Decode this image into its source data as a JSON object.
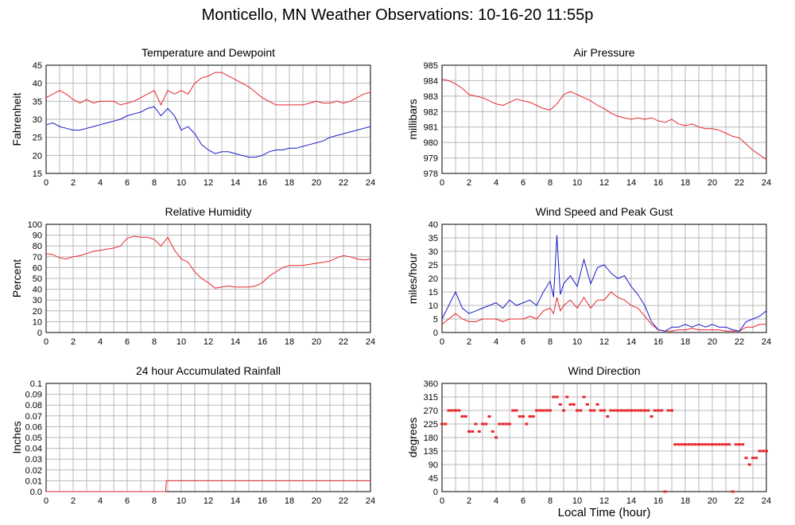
{
  "title": "Monticello, MN Weather Observations: 10-16-20 11:55p",
  "xlabel": "Local Time (hour)",
  "colors": {
    "red": "#e8262b",
    "blue": "#1a1acc",
    "grid": "#b8b8b8",
    "frame": "#000000"
  },
  "chart_data": [
    {
      "type": "line",
      "title": "Temperature and Dewpoint",
      "ylabel": "Fahrenheit",
      "xlim": [
        0,
        24
      ],
      "ylim": [
        15,
        45
      ],
      "xticks": [
        "0",
        "2",
        "4",
        "6",
        "8",
        "10",
        "12",
        "14",
        "16",
        "18",
        "20",
        "22",
        "24"
      ],
      "yticks": [
        "15",
        "20",
        "25",
        "30",
        "35",
        "40",
        "45"
      ],
      "x": [
        0,
        0.5,
        1,
        1.5,
        2,
        2.5,
        3,
        3.5,
        4,
        4.5,
        5,
        5.5,
        6,
        6.5,
        7,
        7.5,
        8,
        8.5,
        9,
        9.5,
        10,
        10.5,
        11,
        11.5,
        12,
        12.5,
        13,
        13.5,
        14,
        14.5,
        15,
        15.5,
        16,
        16.5,
        17,
        17.5,
        18,
        18.5,
        19,
        19.5,
        20,
        20.5,
        21,
        21.5,
        22,
        22.5,
        23,
        23.5,
        24
      ],
      "series": [
        {
          "color": "red",
          "values": [
            36,
            37,
            38,
            37,
            35.5,
            34.5,
            35.5,
            34.5,
            35,
            35,
            35,
            34,
            34.5,
            35,
            36,
            37,
            38,
            34,
            38,
            37,
            38,
            37,
            40,
            41.5,
            42,
            43,
            43,
            42,
            41,
            40,
            39,
            37.5,
            36,
            35,
            34,
            34,
            34,
            34,
            34,
            34.5,
            35,
            34.5,
            34.5,
            35,
            34.5,
            35,
            36,
            37,
            37.5
          ]
        },
        {
          "color": "blue",
          "values": [
            28.5,
            29,
            28,
            27.5,
            27,
            27,
            27.5,
            28,
            28.5,
            29,
            29.5,
            30,
            31,
            31.5,
            32,
            33,
            33.5,
            31,
            33,
            31,
            27,
            28,
            26,
            23,
            21.5,
            20.5,
            21,
            21,
            20.5,
            20,
            19.5,
            19.5,
            20,
            21,
            21.5,
            21.5,
            22,
            22,
            22.5,
            23,
            23.5,
            24,
            25,
            25.5,
            26,
            26.5,
            27,
            27.5,
            28
          ]
        }
      ]
    },
    {
      "type": "line",
      "title": "Air Pressure",
      "ylabel": "millibars",
      "xlim": [
        0,
        24
      ],
      "ylim": [
        978,
        985
      ],
      "xticks": [
        "0",
        "2",
        "4",
        "6",
        "8",
        "10",
        "12",
        "14",
        "16",
        "18",
        "20",
        "22",
        "24"
      ],
      "yticks": [
        "978",
        "979",
        "980",
        "981",
        "982",
        "983",
        "984",
        "985"
      ],
      "x": [
        0,
        0.5,
        1,
        1.5,
        2,
        2.5,
        3,
        3.5,
        4,
        4.5,
        5,
        5.5,
        6,
        6.5,
        7,
        7.5,
        8,
        8.5,
        9,
        9.5,
        10,
        10.5,
        11,
        11.5,
        12,
        12.5,
        13,
        13.5,
        14,
        14.5,
        15,
        15.5,
        16,
        16.5,
        17,
        17.5,
        18,
        18.5,
        19,
        19.5,
        20,
        20.5,
        21,
        21.5,
        22,
        22.5,
        23,
        23.5,
        24
      ],
      "series": [
        {
          "color": "red",
          "values": [
            984.1,
            984,
            983.8,
            983.5,
            983.1,
            983,
            982.9,
            982.7,
            982.5,
            982.4,
            982.6,
            982.8,
            982.7,
            982.6,
            982.4,
            982.2,
            982.1,
            982.5,
            983.1,
            983.3,
            983.1,
            982.9,
            982.7,
            982.4,
            982.2,
            981.9,
            981.7,
            981.6,
            981.5,
            981.6,
            981.5,
            981.6,
            981.4,
            981.3,
            981.5,
            981.2,
            981.1,
            981.2,
            981,
            980.9,
            980.9,
            980.8,
            980.6,
            980.4,
            980.3,
            979.9,
            979.5,
            979.2,
            978.9
          ]
        }
      ]
    },
    {
      "type": "line",
      "title": "Relative Humidity",
      "ylabel": "Percent",
      "xlim": [
        0,
        24
      ],
      "ylim": [
        0,
        100
      ],
      "xticks": [
        "0",
        "2",
        "4",
        "6",
        "8",
        "10",
        "12",
        "14",
        "16",
        "18",
        "20",
        "22",
        "24"
      ],
      "yticks": [
        "0",
        "10",
        "20",
        "30",
        "40",
        "50",
        "60",
        "70",
        "80",
        "90",
        "100"
      ],
      "x": [
        0,
        0.5,
        1,
        1.5,
        2,
        2.5,
        3,
        3.5,
        4,
        4.5,
        5,
        5.5,
        6,
        6.5,
        7,
        7.5,
        8,
        8.5,
        9,
        9.5,
        10,
        10.5,
        11,
        11.5,
        12,
        12.5,
        13,
        13.5,
        14,
        14.5,
        15,
        15.5,
        16,
        16.5,
        17,
        17.5,
        18,
        18.5,
        19,
        19.5,
        20,
        20.5,
        21,
        21.5,
        22,
        22.5,
        23,
        23.5,
        24
      ],
      "series": [
        {
          "color": "red",
          "values": [
            73,
            72,
            69,
            68,
            70,
            71,
            73,
            75,
            76,
            77,
            78,
            80,
            87,
            89,
            88,
            88,
            86,
            80,
            88,
            76,
            68,
            65,
            56,
            50,
            46,
            41,
            42,
            43,
            42,
            42,
            42,
            43,
            46,
            52,
            56,
            60,
            62,
            62,
            62,
            63,
            64,
            65,
            66,
            69,
            71,
            70,
            68,
            67,
            68
          ]
        }
      ]
    },
    {
      "type": "line",
      "title": "Wind Speed and Peak Gust",
      "ylabel": "miles/hour",
      "xlim": [
        0,
        24
      ],
      "ylim": [
        0,
        40
      ],
      "xticks": [
        "0",
        "2",
        "4",
        "6",
        "8",
        "10",
        "12",
        "14",
        "16",
        "18",
        "20",
        "22",
        "24"
      ],
      "yticks": [
        "0",
        "5",
        "10",
        "15",
        "20",
        "25",
        "30",
        "35",
        "40"
      ],
      "x": [
        0,
        0.5,
        1,
        1.5,
        2,
        2.5,
        3,
        3.5,
        4,
        4.5,
        5,
        5.5,
        6,
        6.5,
        7,
        7.5,
        8,
        8.25,
        8.5,
        8.75,
        9,
        9.5,
        10,
        10.5,
        11,
        11.5,
        12,
        12.5,
        13,
        13.5,
        14,
        14.5,
        15,
        15.5,
        16,
        16.5,
        17,
        17.5,
        18,
        18.5,
        19,
        19.5,
        20,
        20.5,
        21,
        21.5,
        22,
        22.5,
        23,
        23.5,
        24
      ],
      "series": [
        {
          "color": "red",
          "values": [
            3,
            5,
            7,
            5,
            4,
            4,
            5,
            5,
            5,
            4,
            5,
            5,
            5,
            6,
            5,
            8,
            9,
            7,
            13,
            8,
            10,
            12,
            9,
            13,
            9,
            12,
            12,
            15,
            13,
            12,
            10,
            9,
            6,
            3,
            1,
            0.5,
            0.5,
            1,
            1,
            1.5,
            1,
            1,
            1,
            1,
            0.5,
            0.5,
            0.5,
            2,
            2,
            3,
            3
          ]
        },
        {
          "color": "blue",
          "values": [
            5,
            10,
            15,
            9,
            7,
            8,
            9,
            10,
            11,
            9,
            12,
            10,
            11,
            12,
            10,
            15,
            19,
            13,
            36,
            14,
            18,
            21,
            17,
            27,
            18,
            24,
            25,
            22,
            20,
            21,
            17,
            14,
            10,
            4,
            1,
            0.5,
            2,
            2,
            3,
            2,
            3,
            2,
            3,
            2,
            2,
            1,
            0.5,
            4,
            5,
            6,
            8
          ]
        }
      ]
    },
    {
      "type": "line",
      "title": "24 hour Accumulated Rainfall",
      "ylabel": "Inches",
      "xlim": [
        0,
        24
      ],
      "ylim": [
        0,
        0.1
      ],
      "xticks": [
        "0",
        "2",
        "4",
        "6",
        "8",
        "10",
        "12",
        "14",
        "16",
        "18",
        "20",
        "22",
        "24"
      ],
      "yticks": [
        "0.0",
        "0.01",
        "0.02",
        "0.03",
        "0.04",
        "0.05",
        "0.06",
        "0.07",
        "0.08",
        "0.09",
        "0.1"
      ],
      "x": [
        0,
        8.85,
        8.9,
        24
      ],
      "series": [
        {
          "color": "red",
          "values": [
            0,
            0,
            0.01,
            0.01
          ]
        }
      ]
    },
    {
      "type": "scatter",
      "title": "Wind Direction",
      "ylabel": "degrees",
      "xlim": [
        0,
        24
      ],
      "ylim": [
        0,
        360
      ],
      "xticks": [
        "0",
        "2",
        "4",
        "6",
        "8",
        "10",
        "12",
        "14",
        "16",
        "18",
        "20",
        "22",
        "24"
      ],
      "yticks": [
        "0",
        "45",
        "90",
        "135",
        "180",
        "225",
        "270",
        "315",
        "360"
      ],
      "x": [
        0,
        0.25,
        0.5,
        0.75,
        1,
        1.25,
        1.5,
        1.75,
        2,
        2.25,
        2.5,
        2.75,
        3,
        3.25,
        3.5,
        3.75,
        4,
        4.25,
        4.5,
        4.75,
        5,
        5.25,
        5.5,
        5.75,
        6,
        6.25,
        6.5,
        6.75,
        7,
        7.25,
        7.5,
        7.75,
        8,
        8.25,
        8.5,
        8.75,
        9,
        9.25,
        9.5,
        9.75,
        10,
        10.25,
        10.5,
        10.75,
        11,
        11.25,
        11.5,
        11.75,
        12,
        12.25,
        12.5,
        12.75,
        13,
        13.25,
        13.5,
        13.75,
        14,
        14.25,
        14.5,
        14.75,
        15,
        15.25,
        15.5,
        15.75,
        16,
        16.25,
        16.5,
        16.75,
        17,
        17.25,
        17.5,
        17.75,
        18,
        18.25,
        18.5,
        18.75,
        19,
        19.25,
        19.5,
        19.75,
        20,
        20.25,
        20.5,
        20.75,
        21,
        21.25,
        21.5,
        21.75,
        22,
        22.25,
        22.5,
        22.75,
        23,
        23.25,
        23.5,
        23.75,
        24
      ],
      "series": [
        {
          "color": "red",
          "values": [
            225,
            225,
            270,
            270,
            270,
            270,
            250,
            250,
            200,
            200,
            225,
            200,
            225,
            225,
            250,
            200,
            180,
            225,
            225,
            225,
            225,
            270,
            270,
            250,
            250,
            225,
            250,
            250,
            270,
            270,
            270,
            270,
            270,
            315,
            315,
            290,
            270,
            315,
            290,
            290,
            270,
            270,
            315,
            290,
            270,
            270,
            290,
            270,
            270,
            250,
            270,
            270,
            270,
            270,
            270,
            270,
            270,
            270,
            270,
            270,
            270,
            270,
            250,
            270,
            270,
            270,
            0,
            270,
            270,
            157,
            157,
            157,
            157,
            157,
            157,
            157,
            157,
            157,
            157,
            157,
            157,
            157,
            157,
            157,
            157,
            157,
            0,
            157,
            157,
            157,
            112,
            90,
            112,
            112,
            135,
            135,
            135
          ]
        }
      ]
    }
  ]
}
